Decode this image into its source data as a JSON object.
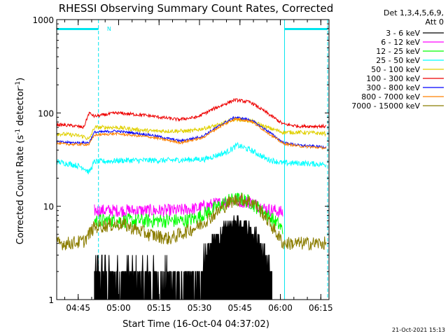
{
  "chart_data": {
    "type": "line",
    "title": "RHESSI Observing Summary Count Rates, Corrected",
    "xlabel": "Start Time (16-Oct-04 04:37:02)",
    "ylabel_parts": [
      "Corrected Count Rate (s",
      "-1",
      " detector",
      "-1",
      ")"
    ],
    "yscale": "log",
    "ylim": [
      1,
      1000
    ],
    "xlim_minutes": [
      0,
      101
    ],
    "y_ticks": [
      {
        "value": 1,
        "label": "1"
      },
      {
        "value": 10,
        "label": "10"
      },
      {
        "value": 100,
        "label": "100"
      },
      {
        "value": 1000,
        "label": "1000"
      }
    ],
    "x_ticks": [
      {
        "min": 7.97,
        "label": "04:45"
      },
      {
        "min": 22.97,
        "label": "05:00"
      },
      {
        "min": 37.97,
        "label": "05:15"
      },
      {
        "min": 52.97,
        "label": "05:30"
      },
      {
        "min": 67.97,
        "label": "05:45"
      },
      {
        "min": 82.97,
        "label": "06:00"
      },
      {
        "min": 97.97,
        "label": "06:15"
      }
    ],
    "legend_title": [
      "Det 1,3,4,5,6,9,",
      "Att 0"
    ],
    "legend_position": "right",
    "series": [
      {
        "name": "3 - 6 keV",
        "color": "#000000"
      },
      {
        "name": "6 - 12 keV",
        "color": "#ff00ff"
      },
      {
        "name": "12 - 25 keV",
        "color": "#00ff00"
      },
      {
        "name": "25 - 50 keV",
        "color": "#00ffff"
      },
      {
        "name": "50 - 100 keV",
        "color": "#e0d000"
      },
      {
        "name": "100 - 300 keV",
        "color": "#ee0000"
      },
      {
        "name": "300 - 800 keV",
        "color": "#0000ff"
      },
      {
        "name": "800 - 7000 keV",
        "color": "#ff8000"
      },
      {
        "name": "7000 - 15000 keV",
        "color": "#8b7d00"
      }
    ],
    "series_profiles": [
      {
        "series": "3 - 6 keV",
        "points": [
          [
            14,
            2
          ],
          [
            20,
            1.7
          ],
          [
            35,
            1.7
          ],
          [
            49,
            1.5
          ],
          [
            52,
            1.5
          ],
          [
            55,
            3
          ],
          [
            59,
            4.5
          ],
          [
            63,
            6
          ],
          [
            67,
            7
          ],
          [
            70,
            6.5
          ],
          [
            74,
            5
          ],
          [
            76,
            3.5
          ],
          [
            79,
            2
          ],
          [
            80,
            1.5
          ]
        ]
      },
      {
        "series": "6 - 12 keV",
        "points": [
          [
            14,
            9
          ],
          [
            30,
            9
          ],
          [
            45,
            9
          ],
          [
            52,
            9.5
          ],
          [
            58,
            10.5
          ],
          [
            66,
            11.5
          ],
          [
            72,
            11
          ],
          [
            77,
            9.5
          ],
          [
            81,
            9
          ],
          [
            84,
            8.5
          ]
        ]
      },
      {
        "series": "12 - 25 keV",
        "points": [
          [
            14,
            7
          ],
          [
            22,
            7
          ],
          [
            38,
            7
          ],
          [
            48,
            7
          ],
          [
            52,
            7.5
          ],
          [
            57,
            9
          ],
          [
            64,
            11.5
          ],
          [
            68,
            12
          ],
          [
            72,
            11
          ],
          [
            77,
            8.5
          ],
          [
            82,
            6.5
          ],
          [
            84,
            5.5
          ]
        ]
      },
      {
        "series": "25 - 50 keV",
        "points": [
          [
            0,
            30
          ],
          [
            6,
            28
          ],
          [
            10,
            26
          ],
          [
            12,
            23
          ],
          [
            14,
            30
          ],
          [
            25,
            31
          ],
          [
            40,
            31
          ],
          [
            55,
            32
          ],
          [
            63,
            38
          ],
          [
            67,
            45
          ],
          [
            72,
            40
          ],
          [
            78,
            32
          ],
          [
            84,
            29
          ],
          [
            90,
            29
          ],
          [
            100,
            28
          ]
        ]
      },
      {
        "series": "50 - 100 keV",
        "points": [
          [
            0,
            60
          ],
          [
            6,
            58
          ],
          [
            10,
            56
          ],
          [
            12,
            52
          ],
          [
            14,
            70
          ],
          [
            22,
            70
          ],
          [
            35,
            64
          ],
          [
            50,
            64
          ],
          [
            60,
            74
          ],
          [
            66,
            86
          ],
          [
            72,
            82
          ],
          [
            78,
            70
          ],
          [
            84,
            62
          ],
          [
            90,
            62
          ],
          [
            100,
            60
          ]
        ]
      },
      {
        "series": "100 - 300 keV",
        "points": [
          [
            0,
            75
          ],
          [
            6,
            73
          ],
          [
            10,
            70
          ],
          [
            12,
            100
          ],
          [
            14,
            92
          ],
          [
            22,
            100
          ],
          [
            32,
            95
          ],
          [
            45,
            85
          ],
          [
            52,
            90
          ],
          [
            58,
            110
          ],
          [
            66,
            138
          ],
          [
            72,
            130
          ],
          [
            78,
            100
          ],
          [
            84,
            76
          ],
          [
            90,
            72
          ],
          [
            100,
            72
          ]
        ]
      },
      {
        "series": "300 - 800 keV",
        "points": [
          [
            0,
            49
          ],
          [
            6,
            48
          ],
          [
            10,
            48
          ],
          [
            12,
            48
          ],
          [
            14,
            62
          ],
          [
            22,
            64
          ],
          [
            35,
            58
          ],
          [
            46,
            50
          ],
          [
            54,
            56
          ],
          [
            60,
            72
          ],
          [
            66,
            90
          ],
          [
            72,
            84
          ],
          [
            78,
            65
          ],
          [
            84,
            48
          ],
          [
            90,
            45
          ],
          [
            100,
            43
          ]
        ]
      },
      {
        "series": "800 - 7000 keV",
        "points": [
          [
            0,
            47
          ],
          [
            6,
            46
          ],
          [
            10,
            46
          ],
          [
            12,
            46
          ],
          [
            14,
            58
          ],
          [
            22,
            60
          ],
          [
            35,
            55
          ],
          [
            46,
            48
          ],
          [
            54,
            54
          ],
          [
            60,
            70
          ],
          [
            66,
            86
          ],
          [
            72,
            82
          ],
          [
            78,
            62
          ],
          [
            84,
            47
          ],
          [
            90,
            44
          ],
          [
            100,
            42
          ]
        ]
      },
      {
        "series": "7000 - 15000 keV",
        "points": [
          [
            0,
            4
          ],
          [
            4,
            4
          ],
          [
            10,
            4.2
          ],
          [
            14,
            6
          ],
          [
            24,
            6.5
          ],
          [
            34,
            5
          ],
          [
            42,
            4.5
          ],
          [
            52,
            6
          ],
          [
            58,
            8
          ],
          [
            64,
            11
          ],
          [
            68,
            12
          ],
          [
            73,
            11
          ],
          [
            77,
            8
          ],
          [
            80,
            6
          ],
          [
            84,
            4
          ],
          [
            90,
            4
          ],
          [
            100,
            4
          ]
        ]
      }
    ],
    "annotations": {
      "attenuator_bars": [
        {
          "start_min": 0,
          "end_min": 15.5,
          "label": "N"
        },
        {
          "start_min": 84.5,
          "end_min": 100.5,
          "label": ""
        }
      ],
      "vertical_markers_min": [
        0,
        15.5,
        84.5,
        100.5
      ],
      "marker_color": "#00e5ee"
    },
    "grid": false,
    "footer_date": "21-Oct-2021 15:13"
  }
}
